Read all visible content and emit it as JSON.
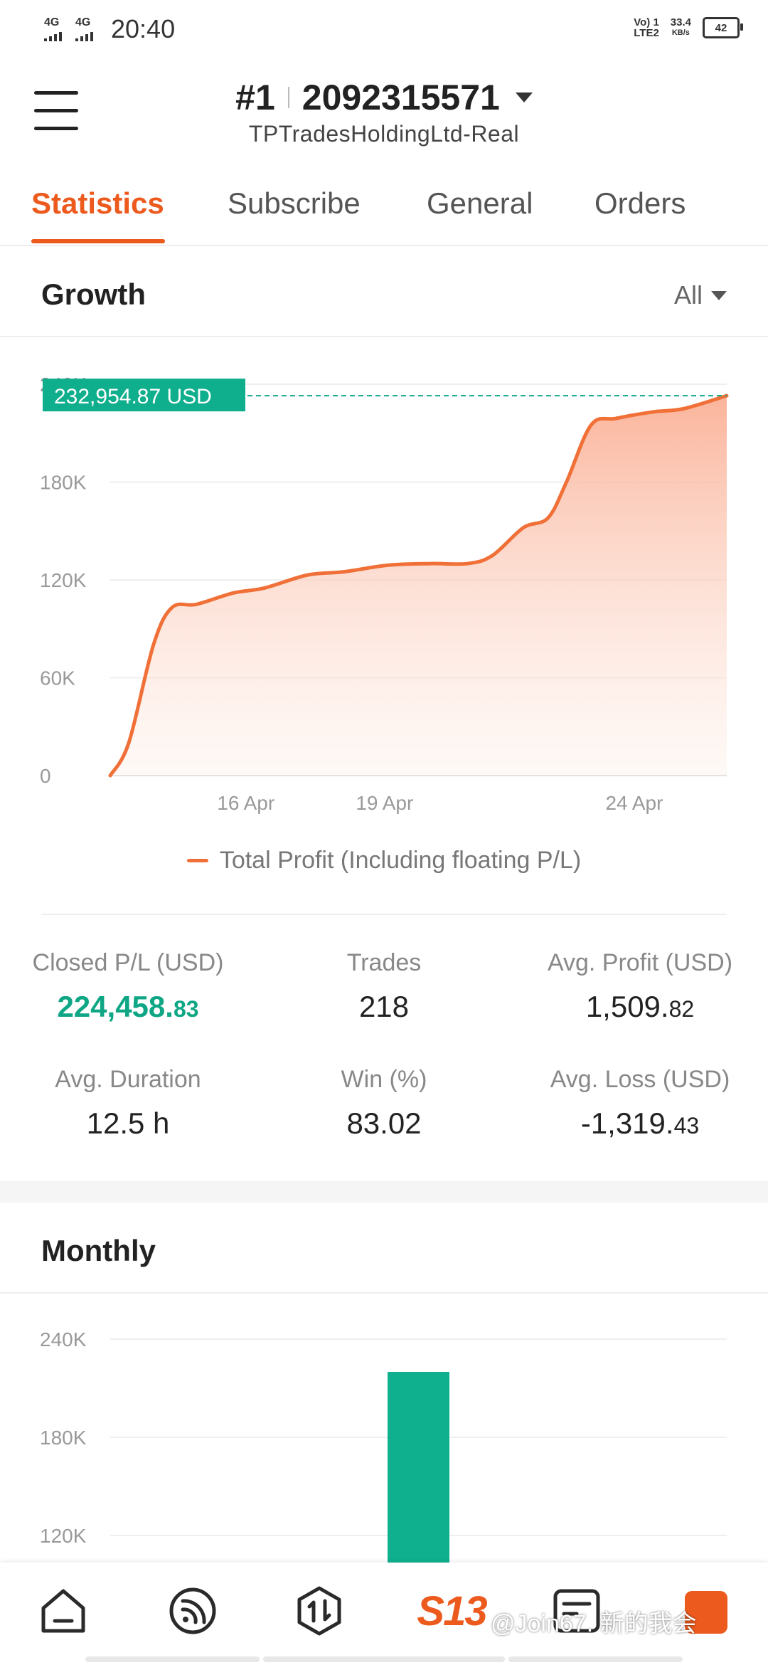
{
  "status_bar": {
    "network1": "4G",
    "network2": "4G",
    "time": "20:40",
    "volte_line1": "Vo) 1",
    "volte_line2": "LTE2",
    "speed_value": "33.4",
    "speed_unit": "KB/s",
    "battery": "42"
  },
  "header": {
    "rank": "#1",
    "account_id": "2092315571",
    "account_name": "TPTradesHoldingLtd-Real"
  },
  "tabs": [
    {
      "label": "Statistics",
      "active": true
    },
    {
      "label": "Subscribe",
      "active": false
    },
    {
      "label": "General",
      "active": false
    },
    {
      "label": "Orders",
      "active": false
    }
  ],
  "growth": {
    "title": "Growth",
    "filter": "All",
    "current_value_label": "232,954.87 USD",
    "legend": "Total Profit (Including floating P/L)"
  },
  "chart_data": [
    {
      "type": "area",
      "title": "Growth",
      "x_ticks": [
        "16 Apr",
        "19 Apr",
        "24 Apr"
      ],
      "y_ticks": [
        "0",
        "60K",
        "120K",
        "180K",
        "240K"
      ],
      "ylim": [
        0,
        240000
      ],
      "series": [
        {
          "name": "Total Profit (Including floating P/L)",
          "points": [
            {
              "x": 0.0,
              "y": 0
            },
            {
              "x": 0.03,
              "y": 20000
            },
            {
              "x": 0.07,
              "y": 80000
            },
            {
              "x": 0.1,
              "y": 103000
            },
            {
              "x": 0.14,
              "y": 105000
            },
            {
              "x": 0.2,
              "y": 112000
            },
            {
              "x": 0.25,
              "y": 115000
            },
            {
              "x": 0.32,
              "y": 123000
            },
            {
              "x": 0.38,
              "y": 125000
            },
            {
              "x": 0.45,
              "y": 129000
            },
            {
              "x": 0.52,
              "y": 130000
            },
            {
              "x": 0.58,
              "y": 130000
            },
            {
              "x": 0.62,
              "y": 135000
            },
            {
              "x": 0.67,
              "y": 152000
            },
            {
              "x": 0.71,
              "y": 158000
            },
            {
              "x": 0.74,
              "y": 180000
            },
            {
              "x": 0.78,
              "y": 215000
            },
            {
              "x": 0.82,
              "y": 219000
            },
            {
              "x": 0.88,
              "y": 223000
            },
            {
              "x": 0.93,
              "y": 225000
            },
            {
              "x": 1.0,
              "y": 232954.87
            }
          ]
        }
      ],
      "line_color": "#f07038",
      "grid": true
    },
    {
      "type": "bar",
      "title": "Monthly",
      "y_ticks": [
        "120K",
        "180K",
        "240K"
      ],
      "ylim": [
        100000,
        260000
      ],
      "series": [
        {
          "values": [
            220000
          ]
        }
      ],
      "bar_color": "#0fb08e"
    }
  ],
  "stats": {
    "closed_pl_label": "Closed P/L (USD)",
    "closed_pl_int": "224,458.",
    "closed_pl_dec": "83",
    "trades_label": "Trades",
    "trades_value": "218",
    "avg_profit_label": "Avg. Profit (USD)",
    "avg_profit_int": "1,509.",
    "avg_profit_dec": "82",
    "avg_duration_label": "Avg. Duration",
    "avg_duration_value": "12.5 h",
    "win_label": "Win (%)",
    "win_value": "83.02",
    "avg_loss_label": "Avg. Loss (USD)",
    "avg_loss_int": "-1,319.",
    "avg_loss_dec": "43"
  },
  "monthly": {
    "title": "Monthly"
  },
  "bottom_nav": {
    "s13_label": "S13",
    "watermark": "@Join67. 新的我会"
  },
  "colors": {
    "accent": "#ec5a1e",
    "positive": "#0ea684",
    "bar": "#0fb08e"
  }
}
